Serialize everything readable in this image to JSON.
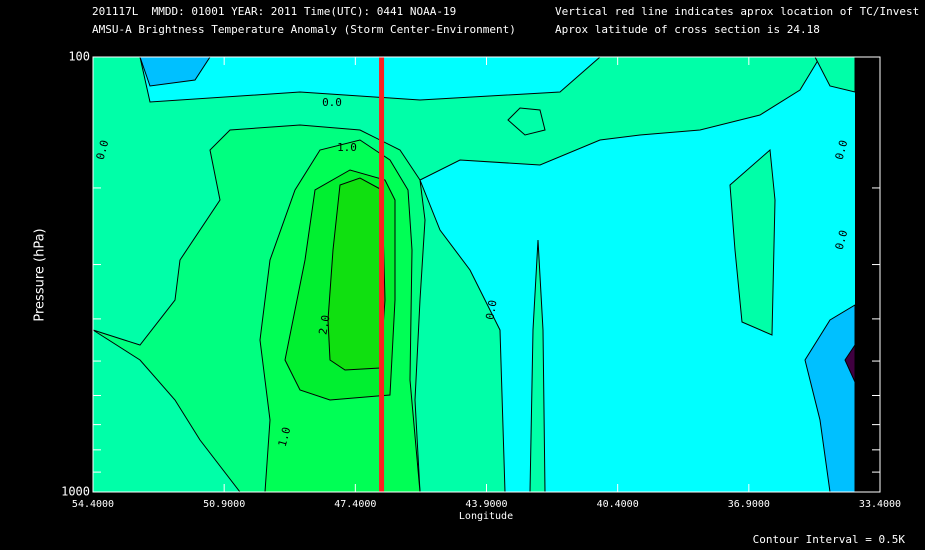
{
  "chart_data": {
    "type": "contour",
    "header": [
      "201117L  MMDD: 01001 YEAR: 2011 Time(UTC): 0441 NOAA-19",
      "AMSU-A Brightness Temperature Anomaly (Storm Center-Environment)"
    ],
    "notes": [
      "Vertical red line indicates aprox location of TC/Invest",
      "Aprox latitude of cross section is 24.18"
    ],
    "xlabel": "Longitude",
    "ylabel": "Pressure (hPa)",
    "footer": "Contour Interval = 0.5K",
    "xlim": [
      54.4,
      33.4
    ],
    "xticks": [
      {
        "value": 54.4,
        "label": "54.4000"
      },
      {
        "value": 50.9,
        "label": "50.9000"
      },
      {
        "value": 47.4,
        "label": "47.4000"
      },
      {
        "value": 43.9,
        "label": "43.9000"
      },
      {
        "value": 40.4,
        "label": "40.4000"
      },
      {
        "value": 36.9,
        "label": "36.9000"
      },
      {
        "value": 33.4,
        "label": "33.4000"
      }
    ],
    "ylim": [
      1000,
      100
    ],
    "ylog": true,
    "yticks": [
      100,
      1000
    ],
    "yminor": [
      100,
      200,
      300,
      400,
      500,
      600,
      700,
      800,
      900,
      1000
    ],
    "marker_x": 46.7,
    "marker_color": "#ff2020",
    "levels": [
      -1.5,
      -1.0,
      -0.5,
      0.0,
      0.5,
      1.0,
      1.5,
      2.0
    ],
    "colors": [
      "#400040",
      "#00c0ff",
      "#00ffff",
      "#00ffa8",
      "#00ff80",
      "#00ff55",
      "#00f030",
      "#10e010"
    ],
    "contour_labels": [
      {
        "value": 0,
        "label": "0.0"
      },
      {
        "value": 0,
        "label": "0.0"
      },
      {
        "value": 0,
        "label": "0.0"
      },
      {
        "value": 0,
        "label": "0.0"
      },
      {
        "value": 0,
        "label": "0.0"
      },
      {
        "value": 1,
        "label": "1.0"
      },
      {
        "value": 1,
        "label": "1.0"
      },
      {
        "value": 2,
        "label": "2.0"
      }
    ]
  }
}
